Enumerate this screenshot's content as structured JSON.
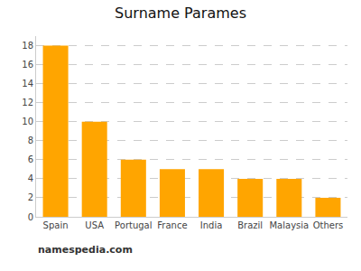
{
  "chart_data": {
    "type": "bar",
    "title": "Surname Parames",
    "categories": [
      "Spain",
      "USA",
      "Portugal",
      "France",
      "India",
      "Brazil",
      "Malaysia",
      "Others"
    ],
    "values": [
      18,
      10,
      6,
      5,
      5,
      4,
      4,
      2
    ],
    "color": "#FFA500",
    "ylim": [
      0,
      19
    ],
    "yticks": [
      0,
      2,
      4,
      6,
      8,
      10,
      12,
      14,
      16,
      18
    ],
    "grid": true,
    "annotations": [
      "namespedia.com"
    ]
  }
}
